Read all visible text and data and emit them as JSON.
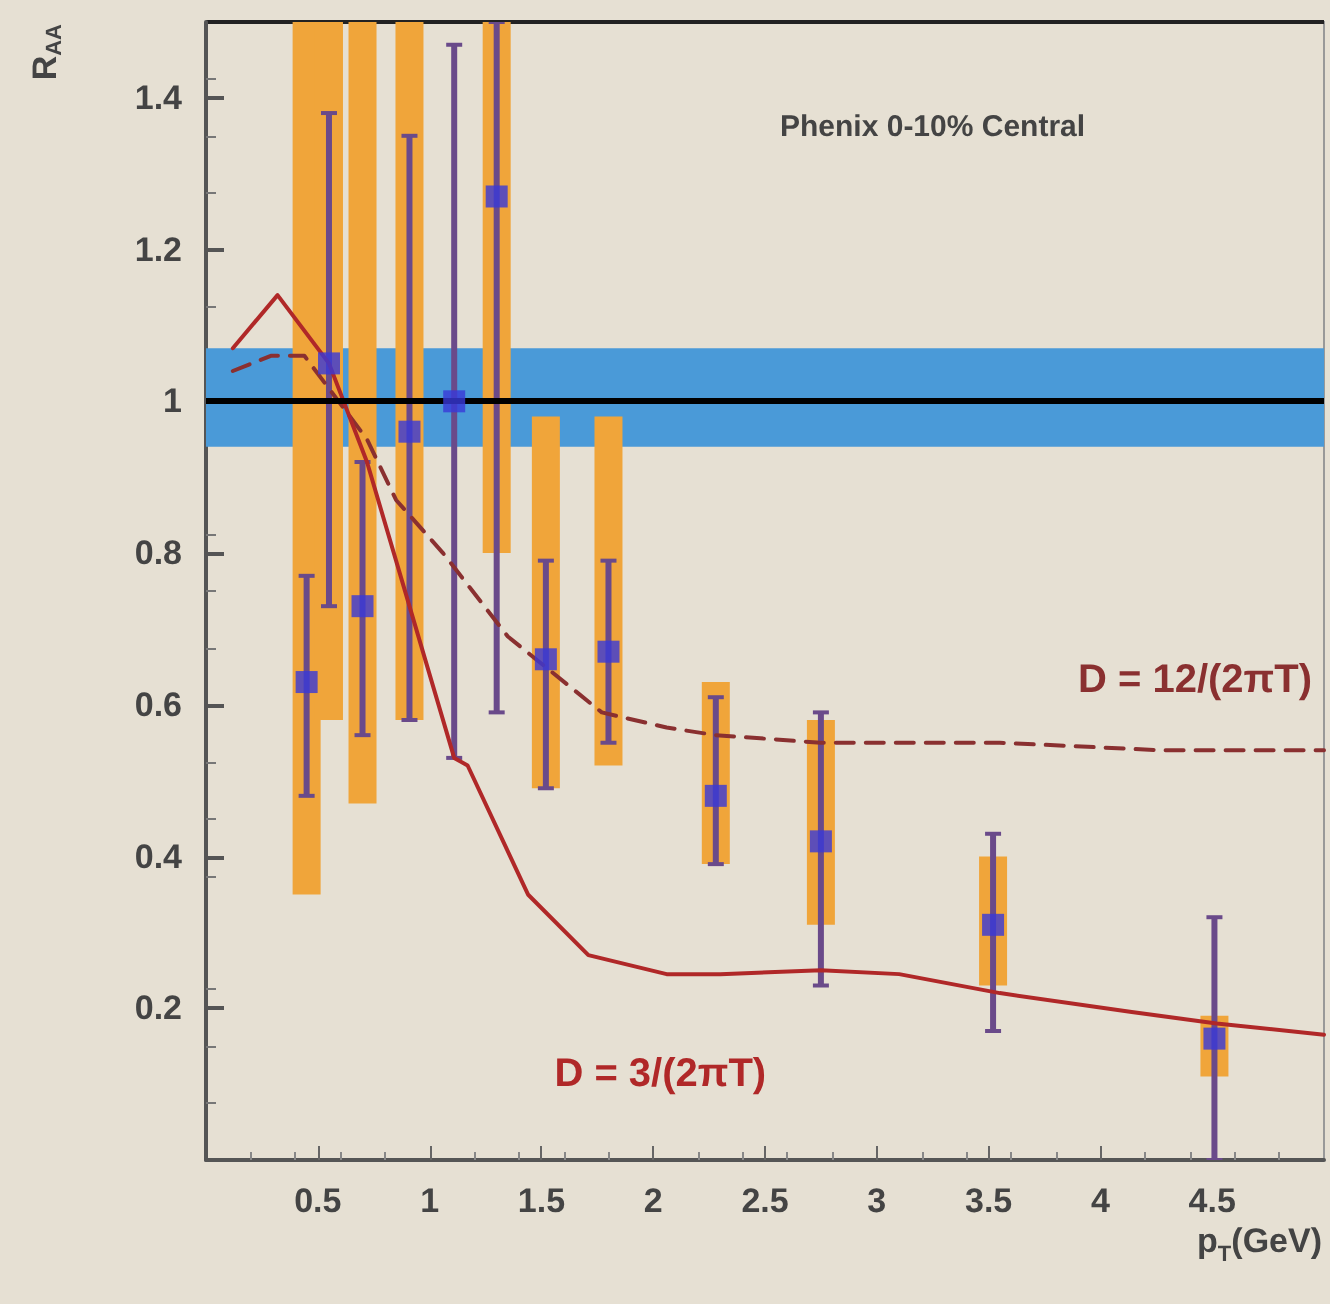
{
  "chart_data": {
    "type": "scatter",
    "annotations": [
      "Phenix 0-10% Central"
    ],
    "xlabel": "p$_{T}$(GeV)",
    "ylabel": "R$_{AA}$",
    "xlim": [
      0,
      5
    ],
    "ylim": [
      0,
      1.5
    ],
    "xticks": [
      0.5,
      1,
      1.5,
      2,
      2.5,
      3,
      3.5,
      4,
      4.5
    ],
    "yticks": [
      0.2,
      0.4,
      0.6,
      0.8,
      1,
      1.2,
      1.4
    ],
    "grid": false,
    "legend": false,
    "ref_lines": [
      {
        "axis": "y",
        "value": 1,
        "color": "#000000"
      }
    ],
    "bands": [
      {
        "axis": "y",
        "from": 0.94,
        "to": 1.07,
        "color": "#4a9ad8"
      }
    ],
    "series": [
      {
        "type": "bar",
        "color": "#f0a53a",
        "x": [
          0.45,
          0.55,
          0.7,
          0.91,
          1.11,
          1.3,
          1.52,
          1.8,
          2.28,
          2.75,
          3.52,
          4.51
        ],
        "base": [
          0.35,
          0.58,
          0.47,
          0.58,
          null,
          0.8,
          0.49,
          0.52,
          0.39,
          0.31,
          0.23,
          0.11
        ],
        "values": [
          1.15,
          0.92,
          1.03,
          0.92,
          null,
          0.7,
          0.49,
          0.46,
          0.24,
          0.27,
          0.17,
          0.08
        ]
      },
      {
        "type": "line",
        "name": "D = 12/(2πT)",
        "color": "#8a3030",
        "line_style": "dashed",
        "marker": "none",
        "x": [
          0.12,
          0.29,
          0.44,
          0.72,
          0.85,
          1.06,
          1.35,
          1.77,
          2.06,
          2.28,
          2.75,
          3.55,
          4.28,
          5.0
        ],
        "values": [
          1.04,
          1.06,
          1.06,
          0.95,
          0.87,
          0.8,
          0.69,
          0.59,
          0.57,
          0.56,
          0.55,
          0.55,
          0.54,
          0.54
        ]
      },
      {
        "type": "line",
        "name": "D = 3/(2πT)",
        "color": "#b02828",
        "line_style": "solid",
        "marker": "none",
        "x": [
          0.12,
          0.32,
          0.55,
          0.72,
          1.11,
          1.17,
          1.44,
          1.71,
          2.06,
          2.3,
          2.75,
          3.1,
          3.55,
          4.14,
          4.52,
          5.0
        ],
        "values": [
          1.07,
          1.14,
          1.05,
          0.92,
          0.53,
          0.52,
          0.35,
          0.27,
          0.245,
          0.245,
          0.25,
          0.245,
          0.22,
          0.195,
          0.18,
          0.165
        ]
      },
      {
        "color": "#3838d8",
        "marker": "square",
        "x": [
          0.45,
          0.55,
          0.7,
          0.91,
          1.11,
          1.3,
          1.52,
          1.8,
          2.28,
          2.75,
          3.52,
          4.51
        ],
        "values": [
          0.63,
          1.05,
          0.73,
          0.96,
          1.0,
          1.27,
          0.66,
          0.67,
          0.48,
          0.42,
          0.31,
          0.16
        ],
        "errors": [
          [
            0.48,
            0.77
          ],
          [
            0.73,
            1.38
          ],
          [
            0.56,
            0.92
          ],
          [
            0.58,
            1.35
          ],
          [
            0.53,
            1.47
          ],
          [
            0.59,
            1.5
          ],
          [
            0.49,
            0.79
          ],
          [
            0.55,
            0.79
          ],
          [
            0.39,
            0.61
          ],
          [
            0.23,
            0.59
          ],
          [
            0.17,
            0.43
          ],
          [
            0,
            0.32
          ]
        ]
      }
    ]
  }
}
